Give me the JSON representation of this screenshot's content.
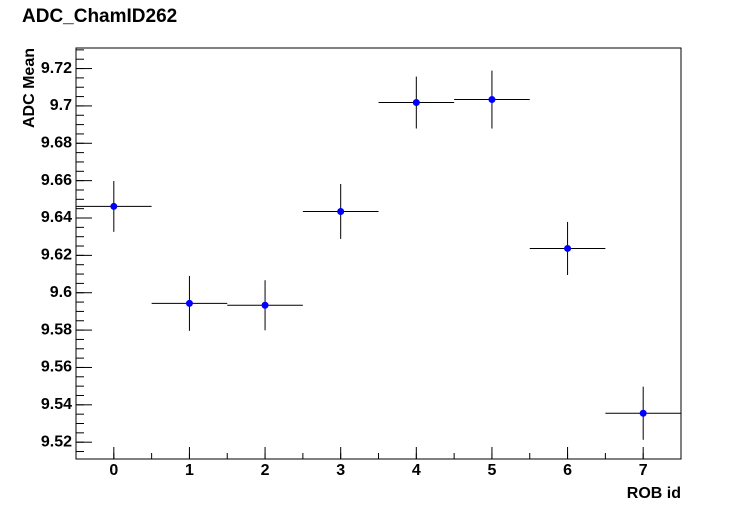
{
  "chart_data": {
    "type": "errorbar",
    "title": "ADC_ChamID262",
    "x_label": "ROB id",
    "y_label": "ADC Mean",
    "x": [
      0,
      1,
      2,
      3,
      4,
      5,
      6,
      7
    ],
    "series": [
      {
        "color": "#0000ff",
        "values": [
          9.6462,
          9.5943,
          9.5933,
          9.6435,
          9.7018,
          9.7034,
          9.6237,
          9.5355
        ],
        "errors": [
          0.0136,
          0.0147,
          0.0134,
          0.0147,
          0.0139,
          0.0155,
          0.0142,
          0.0142
        ],
        "x_errors": [
          0.5,
          0.5,
          0.5,
          0.5,
          0.5,
          0.5,
          0.5,
          0.5
        ]
      }
    ],
    "xlim": [
      -0.5,
      7.5
    ],
    "ylim": [
      9.511,
      9.731
    ],
    "xticks": [
      0,
      1,
      2,
      3,
      4,
      5,
      6,
      7
    ],
    "yticks": [
      9.52,
      9.54,
      9.56,
      9.58,
      9.6,
      9.62,
      9.64,
      9.66,
      9.68,
      9.7,
      9.72
    ]
  }
}
